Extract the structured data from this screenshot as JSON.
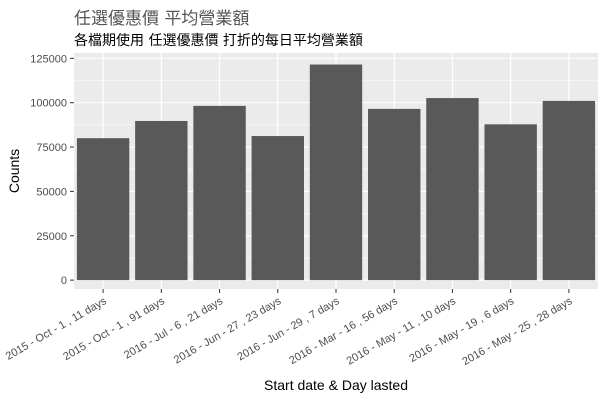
{
  "chart_data": {
    "type": "bar",
    "title": "任選優惠價 平均營業額",
    "subtitle": "各檔期使用 任選優惠價 打折的每日平均營業額",
    "xlabel": "Start date & Day lasted",
    "ylabel": "Counts",
    "categories": [
      "2015 - Oct - 1 , 11 days",
      "2015 - Oct - 1 , 91 days",
      "2016 - Jul - 6 , 21 days",
      "2016 - Jun - 27 , 23 days",
      "2016 - Jun - 29 , 7 days",
      "2016 - Mar - 16 , 56 days",
      "2016 - May - 11 , 10 days",
      "2016 - May - 19 , 6 days",
      "2016 - May - 25 , 28 days"
    ],
    "values": [
      80000,
      89700,
      98200,
      81200,
      121500,
      96500,
      102600,
      87800,
      101000
    ],
    "ylim": [
      -5000,
      128000
    ],
    "yticks": [
      0,
      25000,
      50000,
      75000,
      100000,
      125000
    ],
    "ytick_labels": [
      "0",
      "25000",
      "50000",
      "75000",
      "100000",
      "125000"
    ],
    "grid": true,
    "colors": {
      "bar": "#595959",
      "panel": "#ebebeb",
      "grid": "#ffffff"
    }
  }
}
